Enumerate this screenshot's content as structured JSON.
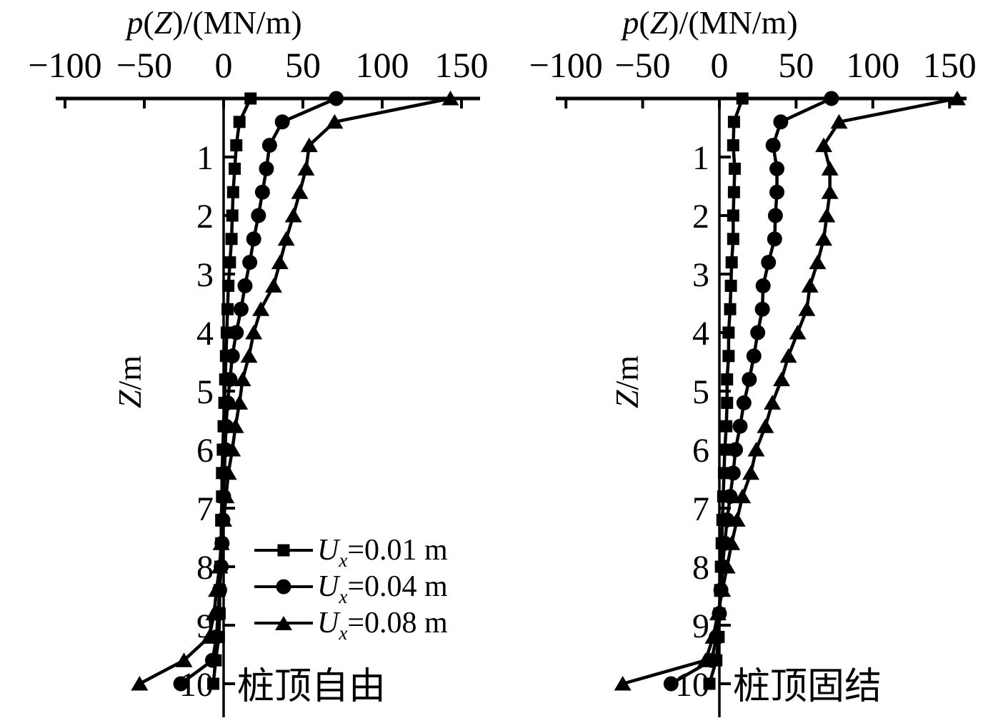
{
  "figure": {
    "background": "#ffffff",
    "ink_color": "#000000",
    "description_visible_text_only": true
  },
  "legend": {
    "entries": [
      {
        "marker": "square",
        "var": "U",
        "sub": "x",
        "rest": "=0.01 m",
        "full": "Ux=0.01 m"
      },
      {
        "marker": "circle",
        "var": "U",
        "sub": "x",
        "rest": "=0.04 m",
        "full": "Ux=0.04 m"
      },
      {
        "marker": "triangle",
        "var": "U",
        "sub": "x",
        "rest": "=0.08 m",
        "full": "Ux=0.08 m"
      }
    ]
  },
  "chart_data": [
    {
      "id": "pile-head-free",
      "type": "line",
      "title": "p(Z)/(MN/m)",
      "title_parts": [
        {
          "t": "p",
          "i": 1
        },
        {
          "t": "(",
          "i": 0
        },
        {
          "t": "Z",
          "i": 1
        },
        {
          "t": ")/(MN/m)",
          "i": 0
        }
      ],
      "annotation": "桩顶自由",
      "x_axis": {
        "label": "p(Z)/(MN/m)",
        "position": "top",
        "range": [
          -100,
          150
        ],
        "ticks": [
          -100,
          -50,
          0,
          50,
          100,
          150
        ],
        "tick_labels": [
          "−100",
          "−50",
          "0",
          "50",
          "100",
          "150"
        ]
      },
      "y_axis": {
        "label": "Z/m",
        "label_parts": [
          {
            "t": "Z",
            "i": 1
          },
          {
            "t": "/m",
            "i": 0
          }
        ],
        "range": [
          0,
          10
        ],
        "direction": "down",
        "ticks": [
          1,
          2,
          3,
          4,
          5,
          6,
          7,
          8,
          9,
          10
        ],
        "tick_labels": [
          "1",
          "2",
          "3",
          "4",
          "5",
          "6",
          "7",
          "8",
          "9",
          "10"
        ]
      },
      "depths_m": [
        0,
        0.4,
        0.8,
        1.2,
        1.6,
        2,
        2.4,
        2.8,
        3.2,
        3.6,
        4,
        4.4,
        4.8,
        5.2,
        5.6,
        6,
        6.4,
        6.8,
        7.2,
        7.6,
        8,
        8.4,
        8.8,
        9.2,
        9.6,
        10
      ],
      "series": [
        {
          "name": "Ux=0.01 m",
          "marker": "square",
          "values": [
            17,
            10,
            8,
            7,
            6,
            5.5,
            5,
            4,
            3,
            2.5,
            2,
            1.5,
            1,
            0.5,
            0,
            -0.5,
            -1,
            -1,
            -1.5,
            -1.5,
            -2,
            -2.5,
            -2.5,
            -3,
            -5,
            -6.5
          ]
        },
        {
          "name": "Ux=0.04 m",
          "marker": "circle",
          "values": [
            71,
            37,
            29,
            27,
            24.5,
            22,
            19,
            16.5,
            13.5,
            11,
            8,
            5.5,
            4,
            2.5,
            1.5,
            1,
            0.5,
            0,
            -0.5,
            -1,
            -1.5,
            -2.5,
            -3.5,
            -4.5,
            -7,
            -27
          ]
        },
        {
          "name": "Ux=0.08 m",
          "marker": "triangle",
          "values": [
            143,
            70,
            54,
            52,
            48,
            44,
            39.5,
            35.5,
            31.5,
            23.5,
            19,
            16,
            12,
            10,
            7.5,
            5.5,
            3,
            1.5,
            0,
            -1.5,
            -2.5,
            -4.5,
            -6,
            -9,
            -25,
            -53
          ]
        }
      ]
    },
    {
      "id": "pile-head-fixed",
      "type": "line",
      "title": "p(Z)/(MN/m)",
      "title_parts": [
        {
          "t": "p",
          "i": 1
        },
        {
          "t": "(",
          "i": 0
        },
        {
          "t": "Z",
          "i": 1
        },
        {
          "t": ")/(MN/m)",
          "i": 0
        }
      ],
      "annotation": "桩顶固结",
      "x_axis": {
        "label": "p(Z)/(MN/m)",
        "position": "top",
        "range": [
          -100,
          150
        ],
        "ticks": [
          -100,
          -50,
          0,
          50,
          100,
          150
        ],
        "tick_labels": [
          "−100",
          "−50",
          "0",
          "50",
          "100",
          "150"
        ]
      },
      "y_axis": {
        "label": "Z/m",
        "label_parts": [
          {
            "t": "Z",
            "i": 1
          },
          {
            "t": "/m",
            "i": 0
          }
        ],
        "range": [
          0,
          10
        ],
        "direction": "down",
        "ticks": [
          1,
          2,
          3,
          4,
          5,
          6,
          7,
          8,
          9,
          10
        ],
        "tick_labels": [
          "1",
          "2",
          "3",
          "4",
          "5",
          "6",
          "7",
          "8",
          "9",
          "10"
        ]
      },
      "depths_m": [
        0,
        0.4,
        0.8,
        1.2,
        1.6,
        2,
        2.4,
        2.8,
        3.2,
        3.6,
        4,
        4.4,
        4.8,
        5.2,
        5.6,
        6,
        6.4,
        6.8,
        7.2,
        7.6,
        8,
        8.4,
        8.8,
        9.2,
        9.6,
        10
      ],
      "series": [
        {
          "name": "Ux=0.01 m",
          "marker": "square",
          "values": [
            15,
            9.5,
            9,
            10,
            9.5,
            9,
            9,
            8,
            7.5,
            7,
            6,
            6,
            5,
            5,
            4.5,
            3.5,
            3,
            2.5,
            2,
            1.5,
            1,
            0.5,
            0,
            -0.5,
            -2,
            -6.5
          ]
        },
        {
          "name": "Ux=0.04 m",
          "marker": "circle",
          "values": [
            73,
            40,
            35,
            37.5,
            37.5,
            36.5,
            36,
            32,
            28.5,
            28,
            25,
            22.5,
            19.5,
            16,
            13.5,
            10.5,
            9,
            7,
            5,
            3.5,
            2,
            1,
            0,
            -2,
            -5,
            -31.5
          ]
        },
        {
          "name": "Ux=0.08 m",
          "marker": "triangle",
          "values": [
            155,
            78,
            68,
            72,
            72,
            70,
            68,
            64,
            59,
            57,
            51,
            45,
            40.5,
            34.5,
            30,
            24,
            20.5,
            15,
            11.5,
            8,
            5,
            2,
            -1,
            -4,
            -9,
            -63
          ]
        }
      ]
    }
  ]
}
